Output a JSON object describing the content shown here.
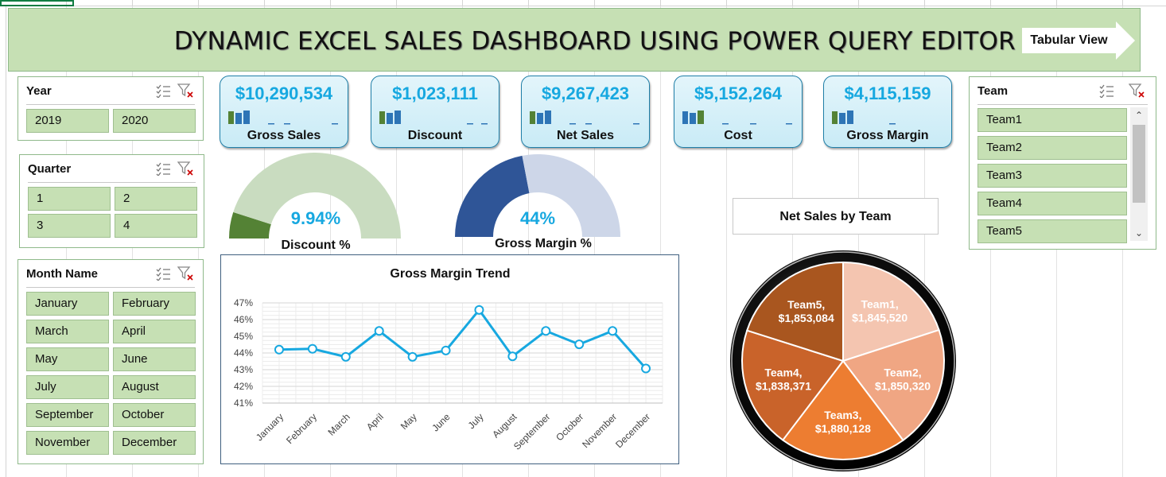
{
  "banner": {
    "title": "DYNAMIC EXCEL SALES DASHBOARD USING POWER QUERY EDITOR",
    "tabular_view_label": "Tabular View"
  },
  "slicers": {
    "year": {
      "title": "Year",
      "items": [
        "2019",
        "2020"
      ]
    },
    "quarter": {
      "title": "Quarter",
      "items": [
        "1",
        "2",
        "3",
        "4"
      ]
    },
    "month": {
      "title": "Month Name",
      "items": [
        "January",
        "February",
        "March",
        "April",
        "May",
        "June",
        "July",
        "August",
        "September",
        "October",
        "November",
        "December"
      ]
    },
    "team": {
      "title": "Team",
      "items": [
        "Team1",
        "Team2",
        "Team3",
        "Team4",
        "Team5"
      ]
    }
  },
  "kpis": [
    {
      "value": "$10,290,534",
      "label": "Gross Sales"
    },
    {
      "value": "$1,023,111",
      "label": "Discount"
    },
    {
      "value": "$9,267,423",
      "label": "Net Sales"
    },
    {
      "value": "$5,152,264",
      "label": "Cost"
    },
    {
      "value": "$4,115,159",
      "label": "Gross Margin"
    }
  ],
  "gauges": {
    "discount": {
      "pct_text": "9.94%",
      "label": "Discount %",
      "fraction": 0.0994
    },
    "gross_margin": {
      "pct_text": "44%",
      "label": "Gross Margin %",
      "fraction": 0.44
    }
  },
  "colors": {
    "banner_bg": "#c6e0b4",
    "slicer_btn": "#c6e0b4",
    "kpi_value": "#17a8e0",
    "gauge_discount_fill": "#548235",
    "gauge_discount_track": "#c9dcc0",
    "gauge_margin_fill": "#2f5597",
    "gauge_margin_track": "#cdd6e8",
    "line": "#17a8e0",
    "pie": [
      "#f4c5b0",
      "#f0a683",
      "#ed7d31",
      "#c9632a",
      "#a9561f"
    ]
  },
  "chart_data": [
    {
      "type": "line",
      "title": "Gross Margin Trend",
      "x": [
        "January",
        "February",
        "March",
        "April",
        "May",
        "June",
        "July",
        "August",
        "September",
        "October",
        "November",
        "December"
      ],
      "values": [
        0.442,
        0.4425,
        0.4377,
        0.4532,
        0.4377,
        0.4415,
        0.4658,
        0.438,
        0.4532,
        0.4452,
        0.4532,
        0.4307
      ],
      "ylim": [
        0.41,
        0.47
      ],
      "yticks": [
        "41%",
        "42%",
        "43%",
        "44%",
        "45%",
        "46%",
        "47%"
      ],
      "grid": true
    },
    {
      "type": "pie",
      "title": "Net Sales by Team",
      "slices": [
        {
          "name": "Team1",
          "value": 1845520,
          "label": "Team1,\n$1,845,520"
        },
        {
          "name": "Team2",
          "value": 1850320,
          "label": "Team2,\n$1,850,320"
        },
        {
          "name": "Team3",
          "value": 1880128,
          "label": "Team3,\n$1,880,128"
        },
        {
          "name": "Team4",
          "value": 1838371,
          "label": "Team4,\n$1,838,371"
        },
        {
          "name": "Team5",
          "value": 1853084,
          "label": "Team5,\n$1,853,084"
        }
      ]
    }
  ]
}
